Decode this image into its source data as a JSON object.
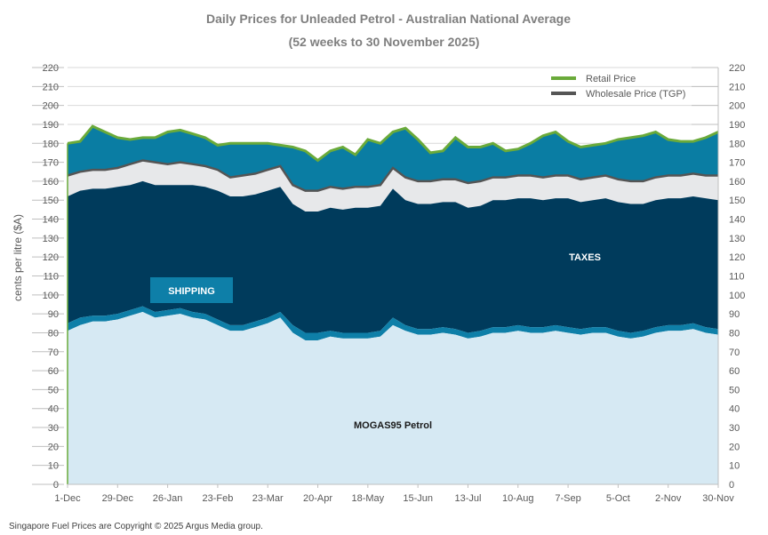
{
  "chart_data": {
    "type": "area",
    "title": "Daily Prices for Unleaded Petrol - Australian National Average",
    "subtitle": "(52  weeks to 30 November 2025)",
    "ylabel": "cents per litre ($A)",
    "xlabel": "",
    "ylim": [
      0,
      220
    ],
    "yticks": [
      0,
      10,
      20,
      30,
      40,
      50,
      60,
      70,
      80,
      90,
      100,
      110,
      120,
      130,
      140,
      150,
      160,
      170,
      180,
      190,
      200,
      210,
      220
    ],
    "x_tick_labels": [
      "1-Dec",
      "29-Dec",
      "26-Jan",
      "23-Feb",
      "23-Mar",
      "20-Apr",
      "18-May",
      "15-Jun",
      "13-Jul",
      "10-Aug",
      "7-Sep",
      "5-Oct",
      "2-Nov",
      "30-Nov"
    ],
    "grid": true,
    "legend_position": "top-right",
    "legend": [
      "Retail Price",
      "Wholesale Price (TGP)"
    ],
    "week": [
      0,
      1,
      2,
      3,
      4,
      5,
      6,
      7,
      8,
      9,
      10,
      11,
      12,
      13,
      14,
      15,
      16,
      17,
      18,
      19,
      20,
      21,
      22,
      23,
      24,
      25,
      26,
      27,
      28,
      29,
      30,
      31,
      32,
      33,
      34,
      35,
      36,
      37,
      38,
      39,
      40,
      41,
      42,
      43,
      44,
      45,
      46,
      47,
      48,
      49,
      50,
      51,
      52
    ],
    "series": [
      {
        "name": "MOGAS95  Petrol",
        "values": [
          81,
          84,
          86,
          86,
          87,
          89,
          91,
          88,
          89,
          90,
          88,
          87,
          84,
          81,
          81,
          83,
          85,
          88,
          80,
          76,
          76,
          78,
          77,
          77,
          77,
          78,
          84,
          81,
          79,
          79,
          80,
          79,
          77,
          78,
          80,
          80,
          81,
          80,
          80,
          81,
          80,
          79,
          80,
          80,
          78,
          77,
          78,
          80,
          81,
          81,
          82,
          80,
          79
        ]
      },
      {
        "name": "SHIPPING",
        "values": [
          85,
          88,
          89,
          89,
          90,
          92,
          94,
          91,
          92,
          93,
          91,
          90,
          87,
          84,
          84,
          86,
          88,
          91,
          84,
          80,
          80,
          81,
          80,
          80,
          80,
          81,
          88,
          84,
          82,
          82,
          83,
          82,
          80,
          81,
          83,
          83,
          84,
          83,
          83,
          84,
          83,
          82,
          83,
          83,
          81,
          80,
          81,
          83,
          84,
          84,
          85,
          83,
          82
        ]
      },
      {
        "name": "TAXES",
        "values": [
          152,
          155,
          156,
          156,
          157,
          158,
          160,
          158,
          158,
          158,
          158,
          157,
          155,
          152,
          152,
          153,
          155,
          157,
          148,
          144,
          144,
          146,
          145,
          146,
          146,
          147,
          156,
          150,
          148,
          148,
          149,
          149,
          146,
          147,
          150,
          150,
          151,
          151,
          150,
          151,
          151,
          149,
          150,
          151,
          149,
          148,
          148,
          150,
          151,
          151,
          152,
          151,
          150
        ]
      },
      {
        "name": "Wholesale Price (TGP)",
        "values": [
          163,
          165,
          166,
          166,
          167,
          169,
          171,
          170,
          169,
          170,
          169,
          168,
          166,
          162,
          163,
          164,
          166,
          168,
          158,
          155,
          155,
          157,
          156,
          157,
          157,
          158,
          167,
          162,
          160,
          160,
          161,
          161,
          159,
          160,
          162,
          162,
          163,
          163,
          162,
          163,
          163,
          161,
          162,
          163,
          161,
          160,
          160,
          162,
          163,
          163,
          164,
          163,
          163
        ]
      },
      {
        "name": "Retail Price",
        "values": [
          180,
          181,
          189,
          186,
          183,
          182,
          183,
          183,
          186,
          187,
          185,
          183,
          179,
          180,
          180,
          180,
          180,
          179,
          178,
          176,
          171,
          176,
          178,
          174,
          182,
          180,
          186,
          188,
          182,
          175,
          176,
          183,
          178,
          178,
          180,
          176,
          177,
          180,
          184,
          186,
          181,
          178,
          179,
          180,
          182,
          183,
          184,
          186,
          182,
          181,
          181,
          183,
          186
        ]
      }
    ],
    "annotations": [
      "SHIPPING",
      "TAXES",
      "MOGAS95  Petrol"
    ],
    "colors": {
      "mogas": "#d6e9f3",
      "shipping": "#0e7fa8",
      "taxes": "#003b5c",
      "margin_lower": "#e7e8ea",
      "margin_upper": "#0a7da3",
      "retail_line": "#6aaa3a",
      "wholesale_line": "#555555",
      "shipping_label_bg": "#0e7fa8",
      "grid": "#d9d9d9"
    }
  },
  "footer": "Singapore Fuel Prices are Copyright © 2025 Argus Media group."
}
